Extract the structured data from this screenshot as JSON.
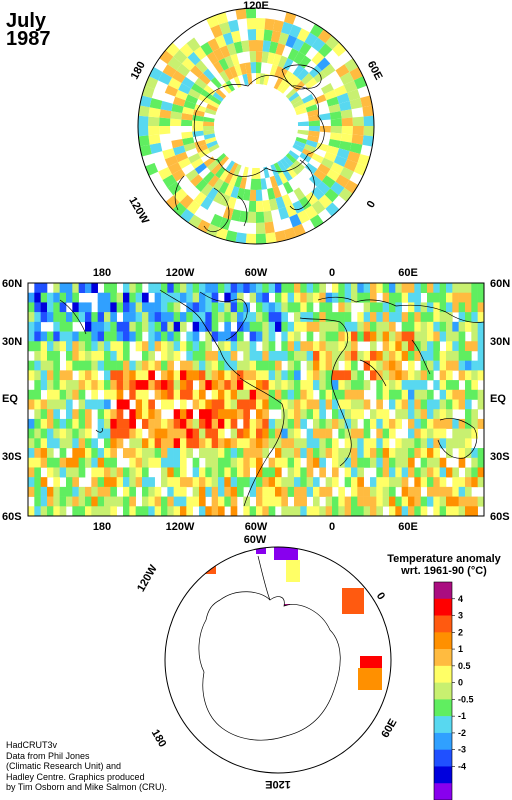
{
  "title": {
    "month": "July",
    "year": "1987"
  },
  "credit": [
    "HadCRUT3v",
    "Data from Phil Jones",
    "(Climatic Research Unit) and",
    "Hadley Centre.  Graphics produced",
    "by Tim Osborn and Mike Salmon (CRU)."
  ],
  "legend": {
    "title_line1": "Temperature anomaly",
    "title_line2": "wrt. 1961-90  (°C)",
    "tick_labels": [
      "4",
      "3",
      "2",
      "1",
      "0.5",
      "0",
      "-0.5",
      "-1",
      "-2",
      "-3",
      "-4"
    ],
    "colors": [
      "#aa0d80",
      "#ff0000",
      "#ff5a10",
      "#ff9000",
      "#ffbb40",
      "#ffff66",
      "#c8f070",
      "#60ee60",
      "#58d8f0",
      "#30a0ff",
      "#2050ff",
      "#0000dd",
      "#8800ee"
    ]
  },
  "north_map": {
    "labels": {
      "top": "120E",
      "upper_left": "180",
      "upper_right": "60E",
      "lower_left": "120W",
      "lower_right": "0"
    }
  },
  "middle_map": {
    "lon_labels": [
      "180",
      "120W",
      "60W",
      "0",
      "60E"
    ],
    "lat_labels": [
      "60N",
      "30N",
      "EQ",
      "30S",
      "60S"
    ]
  },
  "south_map": {
    "labels": {
      "upper_left": "120W",
      "top": "60W",
      "right": "0",
      "lower_left": "180",
      "lower_right": "60E",
      "bottom": "120E"
    }
  },
  "colors": {
    "grid_border": "#000000",
    "coast": "#000000",
    "background": "#ffffff"
  }
}
